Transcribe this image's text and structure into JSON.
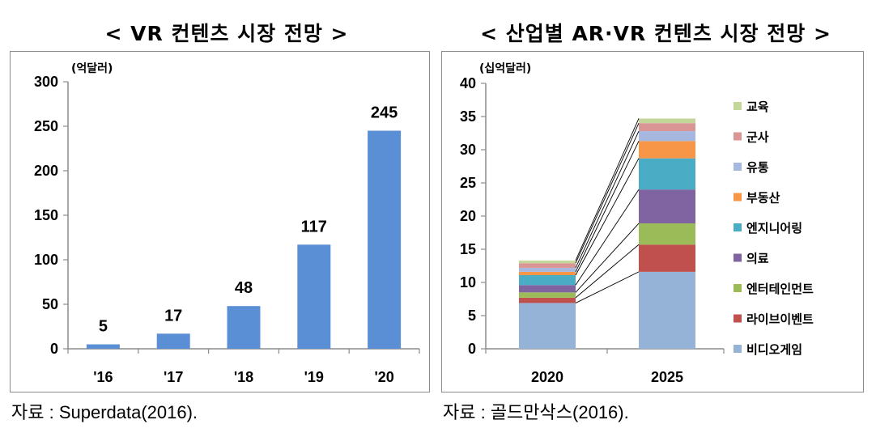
{
  "left_panel": {
    "title": "< VR 컨텐츠 시장 전망 >",
    "source": "자료 : Superdata(2016)."
  },
  "right_panel": {
    "title": "< 산업별 AR·VR 컨텐츠 시장 전망 >",
    "source": "자료 : 골드만삭스(2016)."
  },
  "colors": {
    "bar_blue": "#5a8fd6",
    "axis": "#8c8c8c"
  },
  "chart_data": [
    {
      "type": "bar",
      "unit_label": "(억달러)",
      "categories": [
        "'16",
        "'17",
        "'18",
        "'19",
        "'20"
      ],
      "values": [
        5,
        17,
        48,
        117,
        245
      ],
      "data_labels": [
        "5",
        "17",
        "48",
        "117",
        "245"
      ],
      "ylim": [
        0,
        300
      ],
      "yticks": [
        "0",
        "50",
        "100",
        "150",
        "200",
        "250",
        "300"
      ],
      "grid": false,
      "legend": "none"
    },
    {
      "type": "bar",
      "stacked": true,
      "unit_label": "(십억달러)",
      "categories": [
        "2020",
        "2025"
      ],
      "ylim": [
        0,
        40
      ],
      "yticks": [
        "0",
        "5",
        "10",
        "15",
        "20",
        "25",
        "30",
        "35",
        "40"
      ],
      "grid": false,
      "legend": "right",
      "connector_lines": true,
      "series": [
        {
          "name": "비디오게임",
          "color": "#95b3d7",
          "values": [
            6.9,
            11.6
          ]
        },
        {
          "name": "라이브이벤트",
          "color": "#c0504d",
          "values": [
            0.8,
            4.1
          ]
        },
        {
          "name": "엔터테인먼트",
          "color": "#9bbb59",
          "values": [
            0.8,
            3.2
          ]
        },
        {
          "name": "의료",
          "color": "#8064a2",
          "values": [
            1.1,
            5.1
          ]
        },
        {
          "name": "엔지니어링",
          "color": "#4bacc6",
          "values": [
            1.5,
            4.7
          ]
        },
        {
          "name": "부동산",
          "color": "#f79646",
          "values": [
            0.5,
            2.6
          ]
        },
        {
          "name": "유통",
          "color": "#a6b8e0",
          "values": [
            0.6,
            1.5
          ]
        },
        {
          "name": "군사",
          "color": "#da9694",
          "values": [
            0.7,
            1.2
          ]
        },
        {
          "name": "교육",
          "color": "#c4d79b",
          "values": [
            0.4,
            0.7
          ]
        }
      ]
    }
  ]
}
